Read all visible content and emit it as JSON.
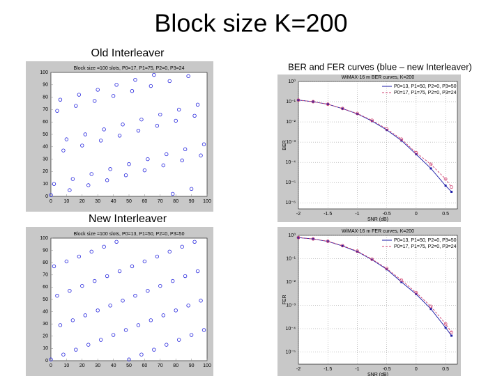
{
  "slide": {
    "title": "Block size K=200",
    "old_label": "Old Interleaver",
    "new_label": "New Interleaver",
    "curves_label": "BER and FER curves (blue – new Interleaver)"
  },
  "chart_data": [
    {
      "type": "scatter",
      "title": "Block size =100 slots, P0=17, P1=75, P2=0, P3=24",
      "color": "#2222dd",
      "x": [
        0,
        2,
        4,
        6,
        8,
        10,
        12,
        14,
        16,
        18,
        20,
        22,
        24,
        26,
        28,
        30,
        32,
        34,
        36,
        38,
        40,
        42,
        44,
        46,
        48,
        50,
        52,
        54,
        56,
        58,
        60,
        62,
        64,
        66,
        68,
        70,
        72,
        74,
        76,
        78,
        80,
        82,
        84,
        86,
        88,
        90,
        92,
        94,
        96,
        98
      ],
      "values": [
        1,
        10,
        69,
        78,
        37,
        46,
        5,
        14,
        73,
        82,
        41,
        50,
        9,
        18,
        77,
        86,
        45,
        54,
        13,
        22,
        81,
        90,
        49,
        58,
        17,
        26,
        85,
        94,
        53,
        62,
        21,
        30,
        89,
        98,
        57,
        66,
        25,
        34,
        93,
        2,
        61,
        70,
        29,
        38,
        97,
        6,
        65,
        74,
        33,
        42
      ],
      "xlim": [
        0,
        100
      ],
      "ylim": [
        0,
        100
      ],
      "xticks": [
        0,
        10,
        20,
        30,
        40,
        50,
        60,
        70,
        80,
        90,
        100
      ],
      "yticks": [
        0,
        10,
        20,
        30,
        40,
        50,
        60,
        70,
        80,
        90,
        100
      ]
    },
    {
      "type": "line",
      "title": "WiMAX-16 m BER curves, K=200",
      "xlabel": "SNR (dB)",
      "ylabel": "BER",
      "log_y": true,
      "grid": true,
      "legend": "upper right",
      "x": [
        -2,
        -1.75,
        -1.5,
        -1.25,
        -1,
        -0.75,
        -0.5,
        -0.25,
        0,
        0.25,
        0.5,
        0.6
      ],
      "series": [
        {
          "name": "P0=13, P1=50, P2=0, P3=50",
          "color": "#1a1aa6",
          "dash": false,
          "values": [
            0.12,
            0.1,
            0.075,
            0.045,
            0.025,
            0.011,
            0.004,
            0.0012,
            0.00025,
            5e-05,
            7e-06,
            3.5e-06
          ]
        },
        {
          "name": "P0=17, P1=75, P2=0, P3=24",
          "color": "#d04070",
          "dash": true,
          "values": [
            0.12,
            0.1,
            0.075,
            0.046,
            0.026,
            0.012,
            0.0045,
            0.0014,
            0.0003,
            8e-05,
            1.5e-05,
            6e-06
          ]
        }
      ],
      "xlim": [
        -2,
        0.7
      ],
      "ylim": [
        5e-07,
        1
      ],
      "xticks": [
        -2,
        -1.5,
        -1,
        -0.5,
        0,
        0.5
      ],
      "yticks": [
        {
          "value": 1,
          "label": "10⁰"
        },
        {
          "value": 0.1,
          "label": "10⁻¹"
        },
        {
          "value": 0.01,
          "label": "10⁻²"
        },
        {
          "value": 0.001,
          "label": "10⁻³"
        },
        {
          "value": 0.0001,
          "label": "10⁻⁴"
        },
        {
          "value": 1e-05,
          "label": "10⁻⁵"
        },
        {
          "value": 1e-06,
          "label": "10⁻⁶"
        }
      ]
    },
    {
      "type": "scatter",
      "title": "Block size =100 slots, P0=13, P1=50, P2=0, P3=50",
      "color": "#2222dd",
      "x": [
        0,
        2,
        4,
        6,
        8,
        10,
        12,
        14,
        16,
        18,
        20,
        22,
        24,
        26,
        28,
        30,
        32,
        34,
        36,
        38,
        40,
        42,
        44,
        46,
        48,
        50,
        52,
        54,
        56,
        58,
        60,
        62,
        64,
        66,
        68,
        70,
        72,
        74,
        76,
        78,
        80,
        82,
        84,
        86,
        88,
        90,
        92,
        94,
        96,
        98
      ],
      "values": [
        1,
        77,
        53,
        29,
        5,
        81,
        57,
        33,
        9,
        85,
        61,
        37,
        13,
        89,
        65,
        41,
        17,
        93,
        69,
        45,
        21,
        97,
        73,
        49,
        25,
        1,
        77,
        53,
        29,
        5,
        81,
        57,
        33,
        9,
        85,
        61,
        37,
        13,
        89,
        65,
        41,
        17,
        93,
        69,
        45,
        21,
        97,
        73,
        49,
        25
      ],
      "xlim": [
        0,
        100
      ],
      "ylim": [
        0,
        100
      ],
      "xticks": [
        0,
        10,
        20,
        30,
        40,
        50,
        60,
        70,
        80,
        90,
        100
      ],
      "yticks": [
        0,
        10,
        20,
        30,
        40,
        50,
        60,
        70,
        80,
        90,
        100
      ]
    },
    {
      "type": "line",
      "title": "WiMAX-16 m FER curves, K=200",
      "xlabel": "SNR (dB)",
      "ylabel": "FER",
      "log_y": true,
      "grid": true,
      "legend": "upper right",
      "x": [
        -2,
        -1.75,
        -1.5,
        -1.25,
        -1,
        -0.75,
        -0.5,
        -0.25,
        0,
        0.25,
        0.5,
        0.6
      ],
      "series": [
        {
          "name": "P0=13, P1=50, P2=0, P3=50",
          "color": "#1a1aa6",
          "dash": false,
          "values": [
            0.8,
            0.7,
            0.55,
            0.35,
            0.2,
            0.09,
            0.035,
            0.01,
            0.003,
            0.0007,
            0.00011,
            5e-05
          ]
        },
        {
          "name": "P0=17, P1=75, P2=0, P3=24",
          "color": "#d04070",
          "dash": true,
          "values": [
            0.8,
            0.7,
            0.56,
            0.36,
            0.21,
            0.095,
            0.038,
            0.012,
            0.0035,
            0.0009,
            0.00016,
            7e-05
          ]
        }
      ],
      "xlim": [
        -2,
        0.7
      ],
      "ylim": [
        3e-06,
        1
      ],
      "xticks": [
        -2,
        -1.5,
        -1,
        -0.5,
        0,
        0.5
      ],
      "yticks": [
        {
          "value": 1,
          "label": "10⁰"
        },
        {
          "value": 0.1,
          "label": "10⁻¹"
        },
        {
          "value": 0.01,
          "label": "10⁻²"
        },
        {
          "value": 0.001,
          "label": "10⁻³"
        },
        {
          "value": 0.0001,
          "label": "10⁻⁴"
        },
        {
          "value": 1e-05,
          "label": "10⁻⁵"
        }
      ]
    }
  ]
}
